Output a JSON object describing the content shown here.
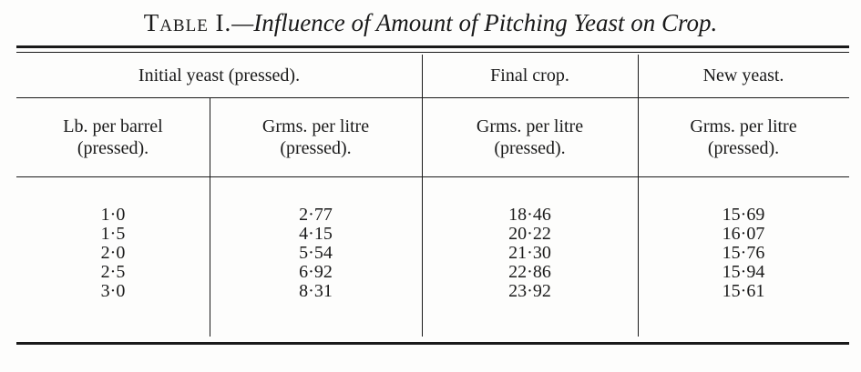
{
  "title": {
    "label": "Table I.",
    "caption": "—Influence of Amount of Pitching Yeast on Crop."
  },
  "groups": [
    "Initial yeast (pressed).",
    "Final crop.",
    "New yeast."
  ],
  "columns": [
    [
      "Lb. per barrel",
      "(pressed)."
    ],
    [
      "Grms. per litre",
      "(pressed)."
    ],
    [
      "Grms. per litre",
      "(pressed)."
    ],
    [
      "Grms. per litre",
      "(pressed)."
    ]
  ],
  "rows": [
    [
      "1·0",
      "2·77",
      "18·46",
      "15·69"
    ],
    [
      "1·5",
      "4·15",
      "20·22",
      "16·07"
    ],
    [
      "2·0",
      "5·54",
      "21·30",
      "15·76"
    ],
    [
      "2·5",
      "6·92",
      "22·86",
      "15·94"
    ],
    [
      "3·0",
      "8·31",
      "23·92",
      "15·61"
    ]
  ]
}
